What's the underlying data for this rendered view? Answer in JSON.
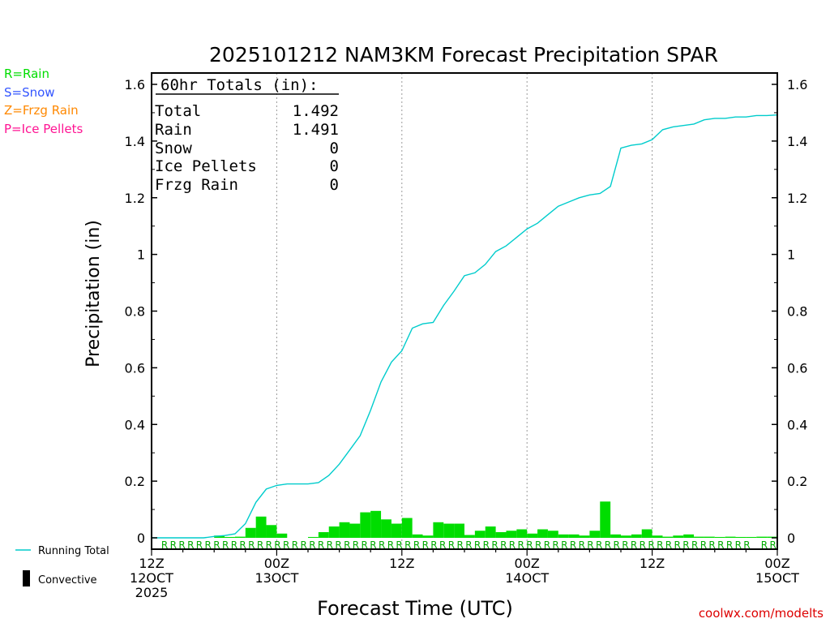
{
  "chart_data": {
    "type": "bar",
    "title": "2025101212 NAM3KM Forecast Precipitation SPAR",
    "xlabel": "Forecast Time (UTC)",
    "ylabel": "Precipitation (in)",
    "ylim": [
      0,
      1.65
    ],
    "yticks": [
      "0",
      "0.2",
      "0.4",
      "0.6",
      "0.8",
      "1",
      "1.2",
      "1.4",
      "1.6"
    ],
    "xlim_hours": [
      0,
      60
    ],
    "xticks": [
      {
        "hour": 0,
        "line1": "12Z",
        "line2": "12OCT",
        "line3": "2025"
      },
      {
        "hour": 12,
        "line1": "00Z",
        "line2": "13OCT",
        "line3": ""
      },
      {
        "hour": 24,
        "line1": "12Z",
        "line2": "",
        "line3": ""
      },
      {
        "hour": 36,
        "line1": "00Z",
        "line2": "14OCT",
        "line3": ""
      },
      {
        "hour": 48,
        "line1": "12Z",
        "line2": "",
        "line3": ""
      },
      {
        "hour": 60,
        "line1": "00Z",
        "line2": "15OCT",
        "line3": ""
      }
    ],
    "grid_hours": [
      12,
      24,
      36,
      48
    ],
    "hourly_precip": [
      0,
      0,
      0,
      0,
      0,
      0,
      0.008,
      0.003,
      0.004,
      0.035,
      0.075,
      0.045,
      0.015,
      0,
      0,
      0.003,
      0.02,
      0.04,
      0.055,
      0.05,
      0.09,
      0.095,
      0.065,
      0.05,
      0.07,
      0.012,
      0.008,
      0.055,
      0.05,
      0.05,
      0.01,
      0.025,
      0.04,
      0.02,
      0.025,
      0.03,
      0.015,
      0.03,
      0.025,
      0.012,
      0.012,
      0.008,
      0.025,
      0.128,
      0.012,
      0.008,
      0.012,
      0.03,
      0.008,
      0.004,
      0.008,
      0.012,
      0.004,
      0.004,
      0.003,
      0.004,
      0.003,
      0.003,
      0.004,
      0.004
    ],
    "ptype_row": " RRRRRRRRRRRRRRRRRRRRRRRRRRRRRRRRRRRRRRRRRRRRRRRRRRRRRRRRRRRRRRRRRRRR RR",
    "running_total_series_name": "Running Total",
    "running_total": [
      0,
      0,
      0,
      0,
      0,
      0,
      0.005,
      0.008,
      0.014,
      0.05,
      0.125,
      0.172,
      0.185,
      0.19,
      0.19,
      0.19,
      0.195,
      0.22,
      0.26,
      0.31,
      0.36,
      0.45,
      0.55,
      0.62,
      0.66,
      0.74,
      0.755,
      0.76,
      0.82,
      0.87,
      0.925,
      0.935,
      0.965,
      1.01,
      1.03,
      1.06,
      1.09,
      1.11,
      1.14,
      1.17,
      1.185,
      1.2,
      1.21,
      1.215,
      1.24,
      1.375,
      1.385,
      1.39,
      1.405,
      1.44,
      1.45,
      1.455,
      1.46,
      1.475,
      1.48,
      1.48,
      1.485,
      1.485,
      1.49,
      1.49,
      1.492
    ],
    "totals_box": {
      "header": "60hr Totals (in):",
      "rows": [
        {
          "label": "Total",
          "value": "1.492"
        },
        {
          "label": "Rain",
          "value": "1.491"
        },
        {
          "label": "Snow",
          "value": "0"
        },
        {
          "label": "Ice Pellets",
          "value": "0"
        },
        {
          "label": "Frzg Rain",
          "value": "0"
        }
      ]
    },
    "legend_ptype": [
      {
        "label": "R=Rain",
        "color": "#00dd00"
      },
      {
        "label": "S=Snow",
        "color": "#3355ff"
      },
      {
        "label": "Z=Frzg Rain",
        "color": "#ff8800"
      },
      {
        "label": "P=Ice Pellets",
        "color": "#ff1493"
      }
    ],
    "legend_bottom": {
      "running_total": "Running Total",
      "convective": "Convective"
    },
    "credit": "coolwx.com/modelts",
    "colors": {
      "bar": "#00dd00",
      "line": "#00cccc",
      "ptype": "#00aa00",
      "credit": "#dd0000"
    }
  }
}
